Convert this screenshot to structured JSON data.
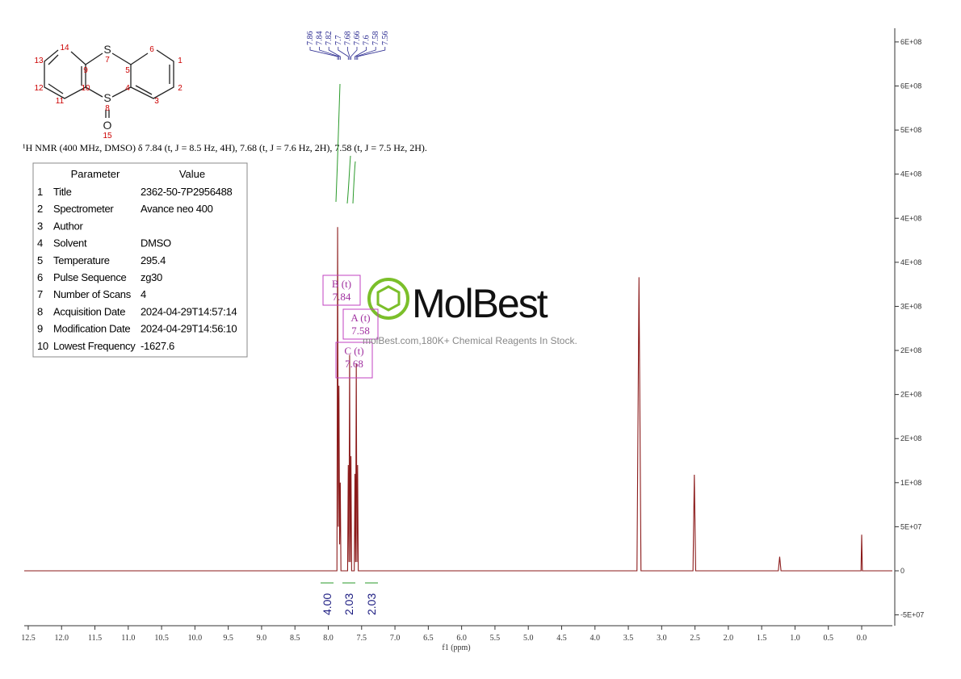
{
  "chart_data": {
    "type": "line",
    "description": "¹H NMR (400 MHz, DMSO) δ 7.84 (t, J = 8.5 Hz, 4H), 7.68 (t, J = 7.6 Hz, 2H), 7.58 (t, J = 7.5 Hz, 2H).",
    "xlabel": "f1 (ppm)",
    "color": "#8b1a1a",
    "x": [
      12.56,
      7.9,
      7.87,
      7.86,
      7.85,
      7.84,
      7.83,
      7.82,
      7.81,
      7.71,
      7.7,
      7.69,
      7.68,
      7.67,
      7.66,
      7.65,
      7.61,
      7.6,
      7.59,
      7.58,
      7.57,
      7.56,
      7.55,
      7.5,
      3.37,
      3.34,
      3.31,
      2.53,
      2.51,
      2.49,
      1.25,
      1.23,
      1.21,
      0.01,
      0,
      -0.01,
      -0.46
    ],
    "values": [
      0,
      0,
      0,
      390000000,
      50000000,
      210000000,
      30000000,
      100000000,
      0,
      0,
      120000000,
      10000000,
      245000000,
      10000000,
      130000000,
      0,
      0,
      110000000,
      10000000,
      235000000,
      10000000,
      120000000,
      0,
      0,
      0,
      333000000,
      0,
      0,
      109000000,
      0,
      0,
      16000000,
      0,
      0,
      41000000,
      0,
      0
    ],
    "xlim": [
      12.56,
      -0.46
    ],
    "ylim": [
      -60000000,
      610000000
    ],
    "xticks": [
      12.5,
      {
        "value": 12,
        "label": "12.0"
      },
      11.5,
      {
        "value": 11,
        "label": "11.0"
      },
      10.5,
      {
        "value": 10,
        "label": "10.0"
      },
      9.5,
      {
        "value": 9,
        "label": "9.0"
      },
      8.5,
      {
        "value": 8,
        "label": "8.0"
      },
      7.5,
      {
        "value": 7,
        "label": "7.0"
      },
      6.5,
      {
        "value": 6,
        "label": "6.0"
      },
      5.5,
      {
        "value": 5,
        "label": "5.0"
      },
      4.5,
      {
        "value": 4,
        "label": "4.0"
      },
      3.5,
      {
        "value": 3,
        "label": "3.0"
      },
      2.5,
      {
        "value": 2,
        "label": "2.0"
      },
      1.5,
      {
        "value": 1,
        "label": "1.0"
      },
      0.5,
      {
        "value": 0,
        "label": "0.0"
      }
    ],
    "yticks": [
      {
        "value": -50000000,
        "label": "-5E+07"
      },
      0,
      {
        "value": 50000000,
        "label": "5E+07"
      },
      {
        "value": 100000000,
        "label": "1E+08"
      },
      {
        "value": 150000000,
        "label": "2E+08"
      },
      {
        "value": 200000000,
        "label": "2E+08"
      },
      {
        "value": 250000000,
        "label": "2E+08"
      },
      {
        "value": 300000000,
        "label": "3E+08"
      },
      {
        "value": 350000000,
        "label": "4E+08"
      },
      {
        "value": 400000000,
        "label": "4E+08"
      },
      {
        "value": 450000000,
        "label": "4E+08"
      },
      {
        "value": 500000000,
        "label": "5E+08"
      },
      {
        "value": 550000000,
        "label": "6E+08"
      },
      {
        "value": 600000000,
        "label": "6E+08"
      }
    ],
    "peak_labels": [
      7.86,
      7.84,
      7.82,
      7.7,
      7.68,
      7.66,
      7.6,
      7.58,
      7.56
    ],
    "integrals": [
      {
        "value": 4,
        "label": "4.00"
      },
      {
        "value": 2.03,
        "label": "2.03"
      },
      {
        "value": 2.03,
        "label": "2.03"
      }
    ],
    "annotations": [
      {
        "label": "B (t)",
        "shift": 7.84
      },
      {
        "label": "A (t)",
        "shift": 7.58
      },
      {
        "label": "C (t)",
        "shift": 7.68
      }
    ]
  },
  "molecule": {
    "atoms": [
      "S",
      "7",
      "5",
      "6",
      "1",
      "2",
      "3",
      "4",
      "9",
      "10",
      "11",
      "12",
      "13",
      "14",
      "S",
      "8",
      "O",
      "15"
    ]
  },
  "parameters": {
    "header": [
      "Parameter",
      "Value"
    ],
    "rows": [
      [
        "1",
        "Title",
        "2362-50-7P2956488"
      ],
      [
        "2",
        "Spectrometer",
        "Avance neo 400"
      ],
      [
        "3",
        "Author",
        ""
      ],
      [
        "4",
        "Solvent",
        "DMSO"
      ],
      [
        "5",
        "Temperature",
        "295.4"
      ],
      [
        "6",
        "Pulse Sequence",
        "zg30"
      ],
      [
        "7",
        "Number of Scans",
        "4"
      ],
      [
        "8",
        "Acquisition Date",
        "2024-04-29T14:57:14"
      ],
      [
        "9",
        "Modification Date",
        "2024-04-29T14:56:10"
      ],
      [
        "10",
        "Lowest Frequency",
        "-1627.6"
      ]
    ]
  },
  "watermark": {
    "brand": "MolBest",
    "tagline": "molBest.com,180K+ Chemical Reagents In Stock."
  }
}
